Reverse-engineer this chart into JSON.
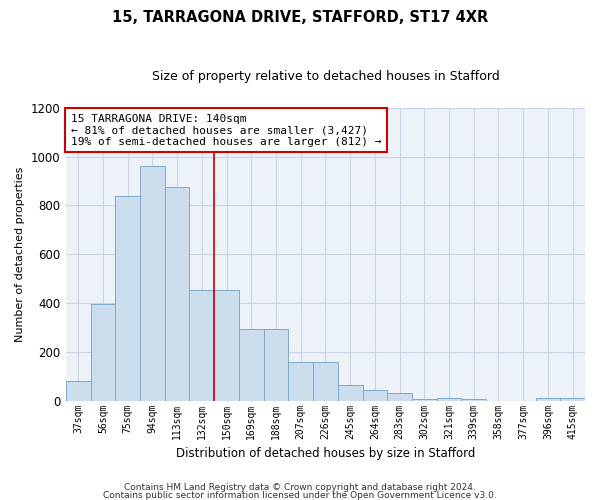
{
  "title": "15, TARRAGONA DRIVE, STAFFORD, ST17 4XR",
  "subtitle": "Size of property relative to detached houses in Stafford",
  "xlabel": "Distribution of detached houses by size in Stafford",
  "ylabel": "Number of detached properties",
  "categories": [
    "37sqm",
    "56sqm",
    "75sqm",
    "94sqm",
    "113sqm",
    "132sqm",
    "150sqm",
    "169sqm",
    "188sqm",
    "207sqm",
    "226sqm",
    "245sqm",
    "264sqm",
    "283sqm",
    "302sqm",
    "321sqm",
    "339sqm",
    "358sqm",
    "377sqm",
    "396sqm",
    "415sqm"
  ],
  "values": [
    80,
    395,
    840,
    960,
    875,
    455,
    455,
    295,
    295,
    160,
    160,
    65,
    45,
    30,
    5,
    10,
    5,
    0,
    0,
    10,
    10
  ],
  "bar_color": "#ccdded",
  "bar_edge_color": "#7aaac8",
  "property_label": "15 TARRAGONA DRIVE: 140sqm",
  "annotation_line1": "← 81% of detached houses are smaller (3,427)",
  "annotation_line2": "19% of semi-detached houses are larger (812) →",
  "annotation_box_color": "#ffffff",
  "annotation_box_edge": "#cc0000",
  "vline_color": "#cc0000",
  "grid_color": "#c8d4e4",
  "bg_color": "#edf2f8",
  "footnote1": "Contains HM Land Registry data © Crown copyright and database right 2024.",
  "footnote2": "Contains public sector information licensed under the Open Government Licence v3.0.",
  "ylim": [
    0,
    1200
  ],
  "yticks": [
    0,
    200,
    400,
    600,
    800,
    1000,
    1200
  ],
  "vline_x": 5.5
}
